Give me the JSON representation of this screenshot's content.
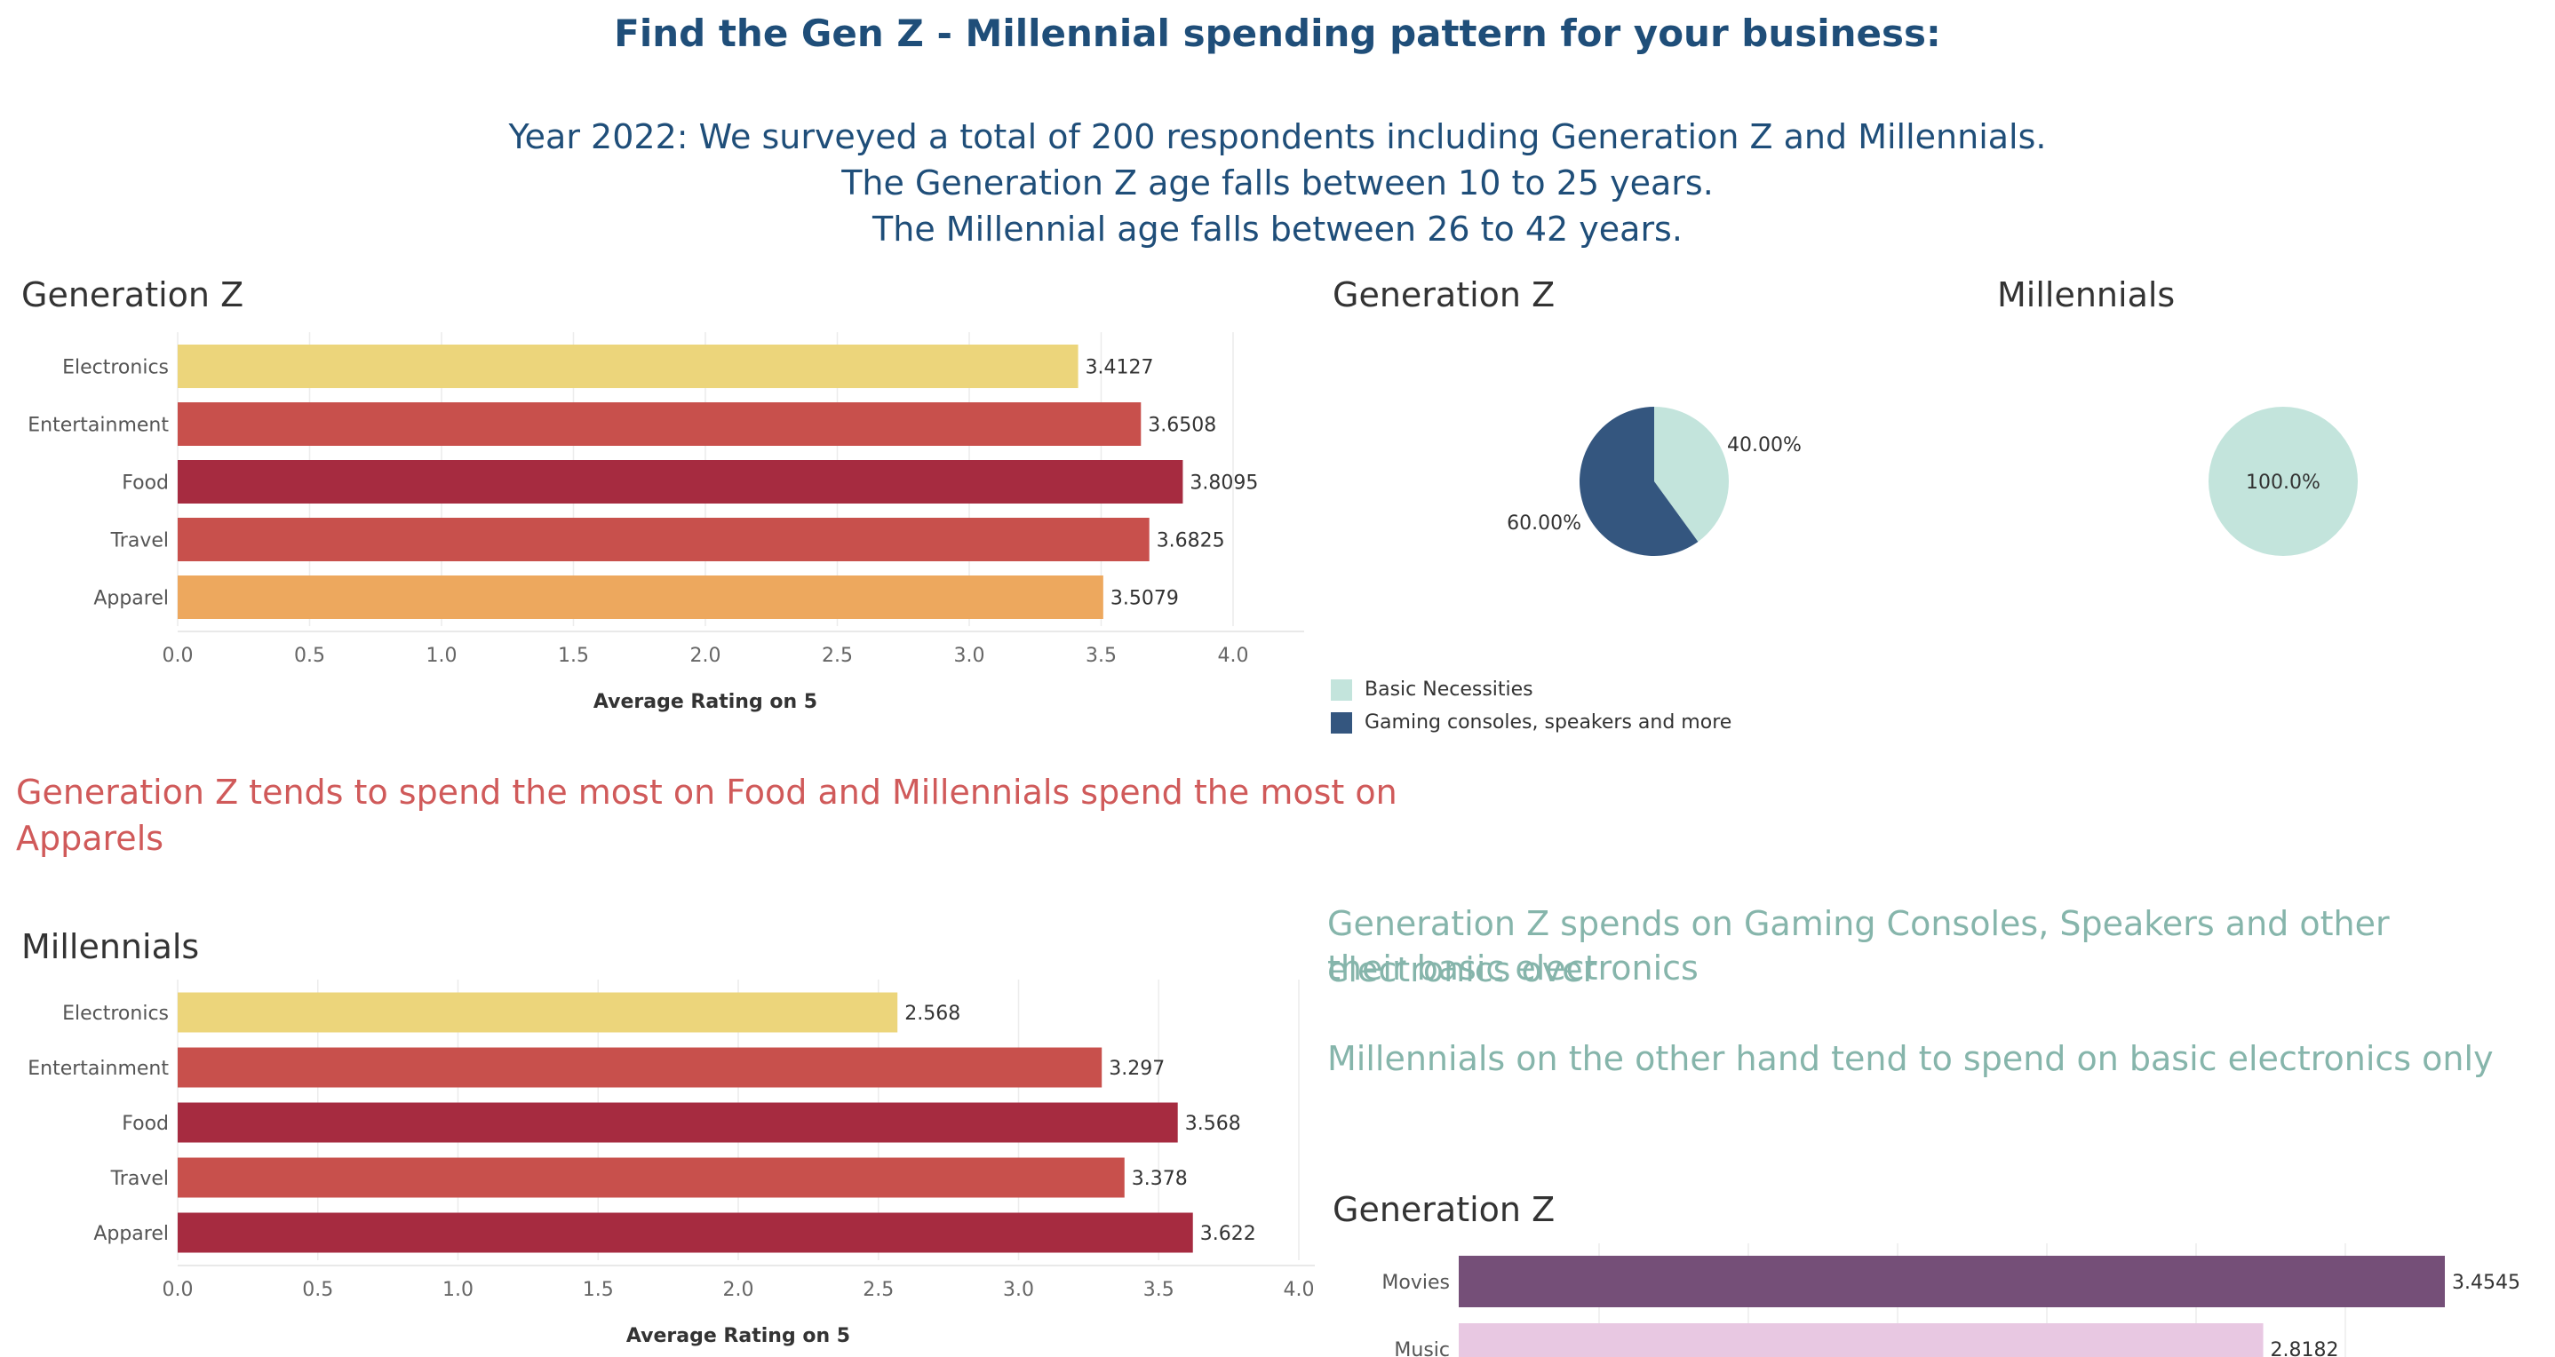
{
  "header": {
    "title": "Find the Gen Z - Millennial spending pattern for your business:",
    "lines": [
      "Year 2022: We surveyed a total of 200 respondents including Generation Z and Millennials.",
      "The Generation Z age falls between 10 to 25 years.",
      "The Millennial age falls between 26 to 42 years."
    ]
  },
  "insights": {
    "red_line1": "Generation Z tends to spend the most on Food and Millennials spend the most on",
    "red_line2": "Apparels",
    "teal_line1": "Generation Z spends on Gaming Consoles, Speakers and other electronics over",
    "teal_line2": "their basic electronics",
    "teal_line3": "Millennials on the other hand tend to spend on basic electronics only"
  },
  "pie_legend": [
    {
      "label": "Basic Necessities",
      "color": "#c3e4dc"
    },
    {
      "label": "Gaming consoles, speakers and more",
      "color": "#34567f"
    }
  ],
  "chart_data": [
    {
      "id": "genz_bar",
      "type": "bar",
      "orientation": "horizontal",
      "title": "Generation Z",
      "xlabel": "Average Rating on 5",
      "categories": [
        "Electronics",
        "Entertainment",
        "Food",
        "Travel",
        "Apparel"
      ],
      "values": [
        3.4127,
        3.6508,
        3.8095,
        3.6825,
        3.5079
      ],
      "value_labels": [
        "3.4127",
        "3.6508",
        "3.8095",
        "3.6825",
        "3.5079"
      ],
      "colors": [
        "#ecd57b",
        "#c8504c",
        "#a62b40",
        "#c8504c",
        "#eda85e"
      ],
      "xlim": [
        0,
        4.0
      ],
      "ticks": [
        "0.0",
        "0.5",
        "1.0",
        "1.5",
        "2.0",
        "2.5",
        "3.0",
        "3.5",
        "4.0"
      ]
    },
    {
      "id": "mill_bar",
      "type": "bar",
      "orientation": "horizontal",
      "title": "Millennials",
      "xlabel": "Average Rating on 5",
      "categories": [
        "Electronics",
        "Entertainment",
        "Food",
        "Travel",
        "Apparel"
      ],
      "values": [
        2.568,
        3.297,
        3.568,
        3.378,
        3.622
      ],
      "value_labels": [
        "2.568",
        "3.297",
        "3.568",
        "3.378",
        "3.622"
      ],
      "colors": [
        "#ecd57b",
        "#c8504c",
        "#a62b40",
        "#c8504c",
        "#a62b40"
      ],
      "xlim": [
        0,
        4.0
      ],
      "ticks": [
        "0.0",
        "0.5",
        "1.0",
        "1.5",
        "2.0",
        "2.5",
        "3.0",
        "3.5",
        "4.0"
      ]
    },
    {
      "id": "genz_pie",
      "type": "pie",
      "title": "Generation Z",
      "slices": [
        {
          "label": "Basic Necessities",
          "value": 40.0,
          "value_label": "40.00%",
          "color": "#c3e4dc"
        },
        {
          "label": "Gaming consoles, speakers and more",
          "value": 60.0,
          "value_label": "60.00%",
          "color": "#34567f"
        }
      ]
    },
    {
      "id": "mill_pie",
      "type": "pie",
      "title": "Millennials",
      "slices": [
        {
          "label": "Basic Necessities",
          "value": 100.0,
          "value_label": "100.0%",
          "color": "#c3e4dc"
        }
      ]
    },
    {
      "id": "genz_ent_bar",
      "type": "bar",
      "orientation": "horizontal",
      "title": "Generation Z",
      "categories": [
        "Movies",
        "Music"
      ],
      "values": [
        3.4545,
        2.8182
      ],
      "value_labels": [
        "3.4545",
        "2.8182"
      ],
      "colors": [
        "#754f78",
        "#e8c8e2"
      ]
    }
  ]
}
